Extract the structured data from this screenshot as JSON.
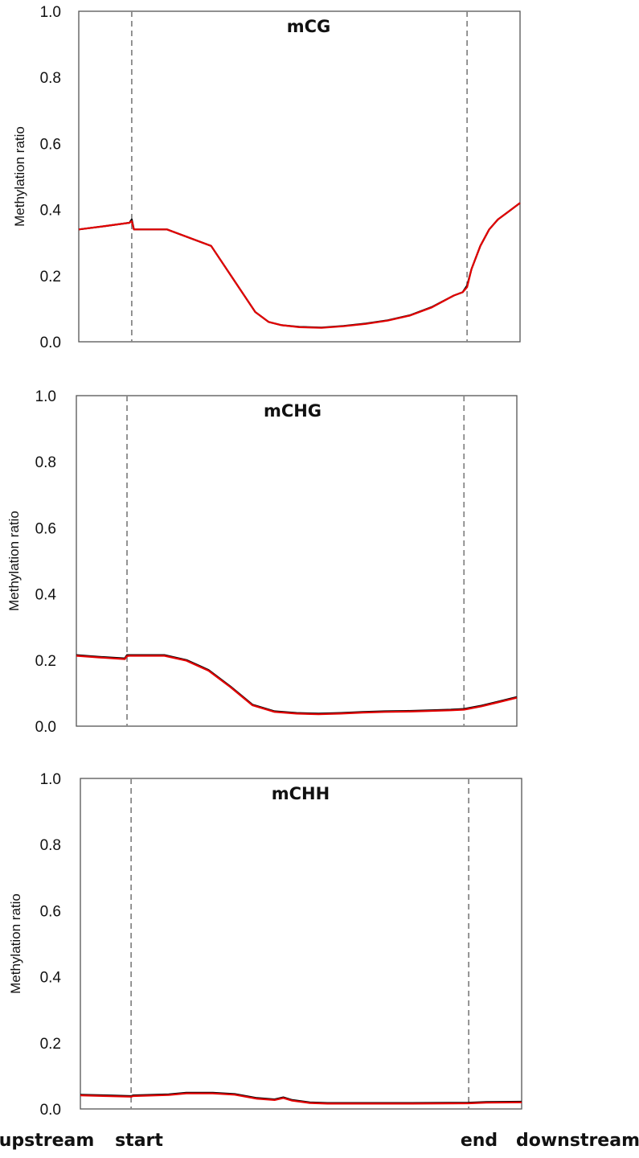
{
  "chart_data": [
    {
      "type": "line",
      "title": "mCG",
      "ylabel": "Methylation ratio",
      "ylim": [
        0,
        1.0
      ],
      "yticks": [
        "0.0",
        "0.2",
        "0.4",
        "0.6",
        "0.8",
        "1.0"
      ],
      "xlim": [
        0,
        100
      ],
      "boundaries": [
        12,
        88
      ],
      "series": [
        {
          "color": "#000000",
          "x": [
            0,
            6,
            11.5,
            12,
            12.5,
            20,
            30,
            35,
            40,
            43,
            46,
            50,
            55,
            60,
            65,
            70,
            75,
            80,
            85,
            87,
            88,
            89,
            91,
            93,
            95,
            97,
            100
          ],
          "y": [
            0.34,
            0.35,
            0.36,
            0.37,
            0.34,
            0.34,
            0.29,
            0.19,
            0.09,
            0.06,
            0.05,
            0.045,
            0.043,
            0.048,
            0.055,
            0.065,
            0.08,
            0.105,
            0.14,
            0.15,
            0.17,
            0.22,
            0.29,
            0.34,
            0.37,
            0.39,
            0.42
          ]
        },
        {
          "color": "#e30000",
          "x": [
            0,
            6,
            11.5,
            12,
            12.5,
            20,
            30,
            35,
            40,
            43,
            46,
            50,
            55,
            60,
            65,
            70,
            75,
            80,
            85,
            87,
            88,
            89,
            91,
            93,
            95,
            97,
            100
          ],
          "y": [
            0.34,
            0.35,
            0.36,
            0.365,
            0.34,
            0.34,
            0.29,
            0.19,
            0.09,
            0.06,
            0.05,
            0.044,
            0.042,
            0.047,
            0.054,
            0.064,
            0.079,
            0.104,
            0.14,
            0.15,
            0.165,
            0.22,
            0.29,
            0.34,
            0.37,
            0.39,
            0.42
          ]
        }
      ]
    },
    {
      "type": "line",
      "title": "mCHG",
      "ylabel": "Methylation ratio",
      "ylim": [
        0,
        1.0
      ],
      "yticks": [
        "0.0",
        "0.2",
        "0.4",
        "0.6",
        "0.8",
        "1.0"
      ],
      "xlim": [
        0,
        100
      ],
      "boundaries": [
        11.5,
        88
      ],
      "series": [
        {
          "color": "#000000",
          "x": [
            0,
            5,
            11,
            11.5,
            12,
            15,
            20,
            25,
            30,
            35,
            40,
            45,
            50,
            55,
            60,
            65,
            70,
            75,
            80,
            85,
            88,
            92,
            96,
            100
          ],
          "y": [
            0.215,
            0.21,
            0.205,
            0.215,
            0.215,
            0.215,
            0.215,
            0.2,
            0.17,
            0.12,
            0.065,
            0.045,
            0.04,
            0.038,
            0.04,
            0.043,
            0.045,
            0.046,
            0.048,
            0.05,
            0.052,
            0.062,
            0.075,
            0.088
          ]
        },
        {
          "color": "#e30000",
          "x": [
            0,
            5,
            11,
            11.5,
            12,
            15,
            20,
            25,
            30,
            35,
            40,
            45,
            50,
            55,
            60,
            65,
            70,
            75,
            80,
            85,
            88,
            92,
            96,
            100
          ],
          "y": [
            0.213,
            0.208,
            0.203,
            0.212,
            0.213,
            0.213,
            0.213,
            0.198,
            0.168,
            0.118,
            0.063,
            0.043,
            0.038,
            0.036,
            0.038,
            0.041,
            0.043,
            0.044,
            0.046,
            0.048,
            0.05,
            0.06,
            0.073,
            0.086
          ]
        }
      ]
    },
    {
      "type": "line",
      "title": "mCHH",
      "ylabel": "Methylation ratio",
      "ylim": [
        0,
        1.0
      ],
      "yticks": [
        "0.0",
        "0.2",
        "0.4",
        "0.6",
        "0.8",
        "1.0"
      ],
      "xlim": [
        0,
        100
      ],
      "boundaries": [
        11.5,
        88
      ],
      "series": [
        {
          "color": "#000000",
          "x": [
            0,
            6,
            11.5,
            12,
            20,
            24,
            30,
            35,
            40,
            44,
            46,
            48,
            52,
            56,
            65,
            75,
            88,
            92,
            100
          ],
          "y": [
            0.043,
            0.041,
            0.039,
            0.041,
            0.044,
            0.049,
            0.049,
            0.045,
            0.033,
            0.029,
            0.035,
            0.027,
            0.02,
            0.018,
            0.018,
            0.018,
            0.019,
            0.021,
            0.022
          ]
        },
        {
          "color": "#e30000",
          "x": [
            0,
            6,
            11.5,
            12,
            20,
            24,
            30,
            35,
            40,
            44,
            46,
            48,
            52,
            56,
            65,
            75,
            88,
            92,
            100
          ],
          "y": [
            0.041,
            0.039,
            0.037,
            0.039,
            0.042,
            0.047,
            0.047,
            0.043,
            0.031,
            0.027,
            0.033,
            0.025,
            0.018,
            0.016,
            0.016,
            0.016,
            0.017,
            0.019,
            0.02
          ]
        }
      ]
    }
  ],
  "xaxis": {
    "labels": [
      "upstream",
      "start",
      "end",
      "downstream"
    ]
  }
}
